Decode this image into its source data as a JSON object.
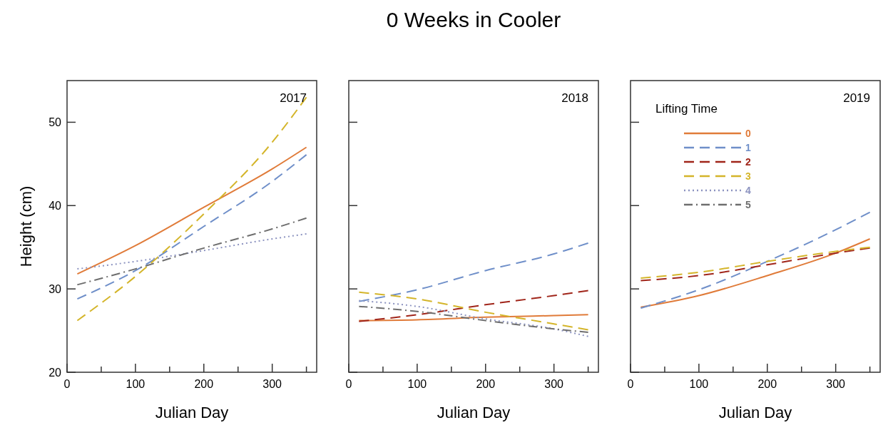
{
  "chart_data": [
    {
      "type": "line",
      "xlabel": "Julian Day",
      "ylabel": "Height (cm)",
      "annotations": [
        "2017"
      ],
      "xlim": [
        0,
        365
      ],
      "ylim": [
        20,
        55
      ],
      "xticks": [
        0,
        {
          "value": 50,
          "label": null
        },
        100,
        {
          "value": 150,
          "label": null
        },
        200,
        {
          "value": 250,
          "label": null
        },
        300,
        {
          "value": 350,
          "label": null
        }
      ],
      "yticks": [
        20,
        30,
        40,
        50
      ],
      "grid": false,
      "legend": false,
      "x": [
        15,
        100,
        200,
        300,
        350
      ],
      "series": [
        {
          "color": "#e07b39",
          "line_style": "solid",
          "values": [
            31.8,
            35.2,
            39.8,
            44.4,
            47
          ]
        },
        {
          "color": "#6f8fc9",
          "line_style": "dashed",
          "values": [
            28.8,
            32.2,
            37.5,
            42.9,
            46.1
          ]
        },
        {
          "color": "#d4b52a",
          "line_style": "dashed",
          "values": [
            26.2,
            31.5,
            39,
            47.6,
            53
          ]
        },
        {
          "color": "#8c93c0",
          "line_style": "dotted",
          "values": [
            32.4,
            33.3,
            34.6,
            36,
            36.6
          ]
        },
        {
          "color": "#6e6e6e",
          "line_style": "dashdot",
          "values": [
            30.5,
            32.4,
            34.9,
            37.2,
            38.5
          ]
        }
      ]
    },
    {
      "type": "line",
      "title": "0 Weeks in Cooler",
      "xlabel": "Julian Day",
      "annotations": [
        "2018"
      ],
      "xlim": [
        0,
        365
      ],
      "ylim": [
        20,
        55
      ],
      "xticks": [
        0,
        {
          "value": 50,
          "label": null
        },
        100,
        {
          "value": 150,
          "label": null
        },
        200,
        {
          "value": 250,
          "label": null
        },
        300,
        {
          "value": 350,
          "label": null
        }
      ],
      "yticks": [
        {
          "value": 20,
          "label": null
        },
        {
          "value": 30,
          "label": null
        },
        {
          "value": 40,
          "label": null
        },
        {
          "value": 50,
          "label": null
        }
      ],
      "tick_labels": "x",
      "grid": false,
      "legend": false,
      "x": [
        15,
        100,
        200,
        300,
        350
      ],
      "series": [
        {
          "color": "#e07b39",
          "line_style": "solid",
          "values": [
            26.2,
            26.3,
            26.6,
            26.8,
            26.9
          ]
        },
        {
          "color": "#6f8fc9",
          "line_style": "dashed",
          "values": [
            28.5,
            29.9,
            32.2,
            34.2,
            35.5
          ]
        },
        {
          "color": "#a0251a",
          "line_style": "dashed",
          "values": [
            26.1,
            26.9,
            28.1,
            29.2,
            29.8
          ]
        },
        {
          "color": "#d4b52a",
          "line_style": "dashed",
          "values": [
            29.6,
            28.8,
            27.2,
            25.8,
            25.1
          ]
        },
        {
          "color": "#8c93c0",
          "line_style": "dotted",
          "values": [
            28.6,
            27.9,
            26.4,
            25.2,
            24.3
          ]
        },
        {
          "color": "#6e6e6e",
          "line_style": "dashdot",
          "values": [
            27.9,
            27.3,
            26.2,
            25.2,
            24.8
          ]
        }
      ]
    },
    {
      "type": "line",
      "xlabel": "Julian Day",
      "annotations": [
        "2019"
      ],
      "legend_title": "Lifting Time",
      "xlim": [
        0,
        365
      ],
      "ylim": [
        20,
        55
      ],
      "xticks": [
        0,
        {
          "value": 50,
          "label": null
        },
        100,
        {
          "value": 150,
          "label": null
        },
        200,
        {
          "value": 250,
          "label": null
        },
        300,
        {
          "value": 350,
          "label": null
        }
      ],
      "yticks": [
        {
          "value": 20,
          "label": null
        },
        {
          "value": 30,
          "label": null
        },
        {
          "value": 40,
          "label": null
        },
        {
          "value": 50,
          "label": null
        }
      ],
      "tick_labels": "x",
      "grid": false,
      "legend": "top left",
      "x": [
        15,
        100,
        200,
        300,
        350
      ],
      "series": [
        {
          "name": "0",
          "color": "#e07b39",
          "line_style": "solid",
          "values": [
            27.8,
            29.2,
            31.6,
            34.3,
            36
          ]
        },
        {
          "name": "1",
          "color": "#6f8fc9",
          "line_style": "dashed",
          "values": [
            27.7,
            29.9,
            33.3,
            37.1,
            39.2
          ]
        },
        {
          "name": "2",
          "color": "#a0251a",
          "line_style": "dashed",
          "values": [
            31,
            31.6,
            32.9,
            34.3,
            34.9
          ]
        },
        {
          "name": "3",
          "color": "#d4b52a",
          "line_style": "dashed",
          "values": [
            31.3,
            32,
            33.3,
            34.5,
            35
          ]
        },
        {
          "name": "4",
          "color": "#8c93c0",
          "line_style": "dotted",
          "values": [
            null,
            null,
            null,
            null,
            null
          ]
        },
        {
          "name": "5",
          "color": "#6e6e6e",
          "line_style": "dashdot",
          "values": [
            null,
            null,
            null,
            null,
            null
          ]
        }
      ]
    }
  ]
}
